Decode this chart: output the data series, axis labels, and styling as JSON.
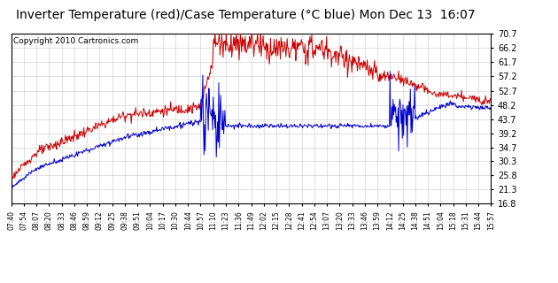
{
  "title": "Inverter Temperature (red)/Case Temperature (°C blue) Mon Dec 13  16:07",
  "copyright": "Copyright 2010 Cartronics.com",
  "y_ticks": [
    16.8,
    21.3,
    25.8,
    30.3,
    34.7,
    39.2,
    43.7,
    48.2,
    52.7,
    57.2,
    61.7,
    66.2,
    70.7
  ],
  "ylim": [
    16.8,
    70.7
  ],
  "x_labels": [
    "07:40",
    "07:54",
    "08:07",
    "08:20",
    "08:33",
    "08:46",
    "08:59",
    "09:12",
    "09:25",
    "09:38",
    "09:51",
    "10:04",
    "10:17",
    "10:30",
    "10:44",
    "10:57",
    "11:10",
    "11:23",
    "11:36",
    "11:49",
    "12:02",
    "12:15",
    "12:28",
    "12:41",
    "12:54",
    "13:07",
    "13:20",
    "13:33",
    "13:46",
    "13:59",
    "14:12",
    "14:25",
    "14:38",
    "14:51",
    "15:04",
    "15:18",
    "15:31",
    "15:44",
    "15:57"
  ],
  "bg_color": "#ffffff",
  "grid_color": "#b0b0b0",
  "red_color": "#cc0000",
  "blue_color": "#0000cc",
  "title_fontsize": 10,
  "copyright_fontsize": 6.5
}
